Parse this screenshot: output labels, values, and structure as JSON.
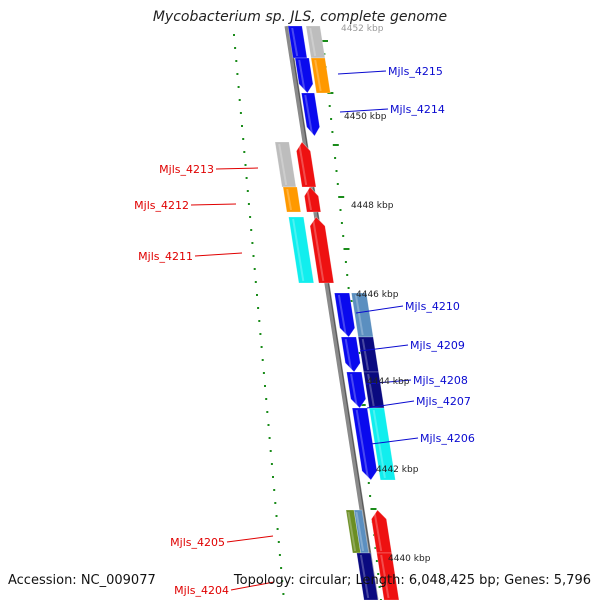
{
  "title": "Mycobacterium sp. JLS, complete genome",
  "accession": "Accession: NC_009077",
  "summary": "Topology: circular; Length: 6,048,425 bp; Genes: 5,796",
  "colors": {
    "backbone": "#8a8a8a",
    "tick": "#1a8c1a",
    "plus_label": "#0a0ad0",
    "minus_label": "#e00000",
    "blue": "#0a0aee",
    "red": "#ee1111",
    "gray": "#bdbdbd",
    "orange": "#ff9900",
    "cyan": "#11eeee",
    "steel": "#5b8fc0",
    "navy": "#0a0a80",
    "olive": "#6b8e23"
  },
  "scale_labels": [
    "4452 kbp",
    "4450 kbp",
    "4448 kbp",
    "4446 kbp",
    "4444 kbp",
    "4442 kbp",
    "4440 kbp"
  ],
  "genes": [
    {
      "name": "Mjls_4215",
      "strand": "plus"
    },
    {
      "name": "Mjls_4214",
      "strand": "plus"
    },
    {
      "name": "Mjls_4213",
      "strand": "minus"
    },
    {
      "name": "Mjls_4212",
      "strand": "minus"
    },
    {
      "name": "Mjls_4211",
      "strand": "minus"
    },
    {
      "name": "Mjls_4210",
      "strand": "plus"
    },
    {
      "name": "Mjls_4209",
      "strand": "plus"
    },
    {
      "name": "Mjls_4208",
      "strand": "plus"
    },
    {
      "name": "Mjls_4207",
      "strand": "plus"
    },
    {
      "name": "Mjls_4206",
      "strand": "plus"
    },
    {
      "name": "Mjls_4205",
      "strand": "minus"
    },
    {
      "name": "Mjls_4204",
      "strand": "minus"
    }
  ]
}
